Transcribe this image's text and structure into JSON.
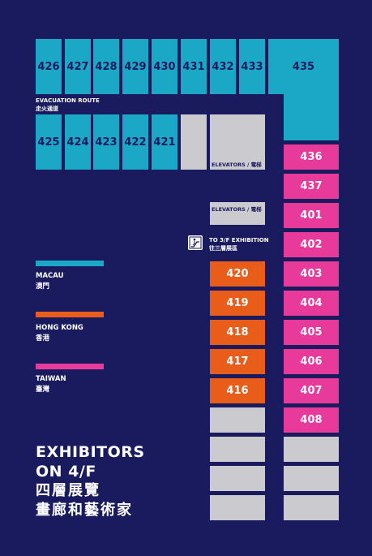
{
  "colors": {
    "background": "#1a1a5e",
    "macau": "#1ba8c6",
    "hong_kong": "#e85d1a",
    "taiwan": "#e83a9a",
    "unassigned": "#cbcbcf"
  },
  "rooms": {
    "r426": "426",
    "r427": "427",
    "r428": "428",
    "r429": "429",
    "r430": "430",
    "r431": "431",
    "r432": "432",
    "r433": "433",
    "r435": "435",
    "r425": "425",
    "r424": "424",
    "r423": "423",
    "r422": "422",
    "r421": "421",
    "r436": "436",
    "r437": "437",
    "r401": "401",
    "r402": "402",
    "r403": "403",
    "r404": "404",
    "r405": "405",
    "r406": "406",
    "r407": "407",
    "r408": "408",
    "r420": "420",
    "r419": "419",
    "r418": "418",
    "r417": "417",
    "r416": "416"
  },
  "labels": {
    "evacuation_en": "EVACUATION ROUTE",
    "evacuation_zh": "走火通道",
    "elevators_1": "ELEVATORS / 電梯",
    "elevators_2": "ELEVATORS / 電梯",
    "to_3f_en": "TO 3/F EXHIBITION",
    "to_3f_zh": "往三層展區"
  },
  "legend": {
    "macau_en": "MACAU",
    "macau_zh": "澳門",
    "hk_en": "HONG KONG",
    "hk_zh": "香港",
    "tw_en": "TAIWAN",
    "tw_zh": "臺灣"
  },
  "title": {
    "line1": "EXHIBITORS",
    "line2": "ON 4/F",
    "line3": "四層展覽",
    "line4": "畫廊和藝術家"
  },
  "icons": {
    "stairs": "escalator-icon"
  }
}
